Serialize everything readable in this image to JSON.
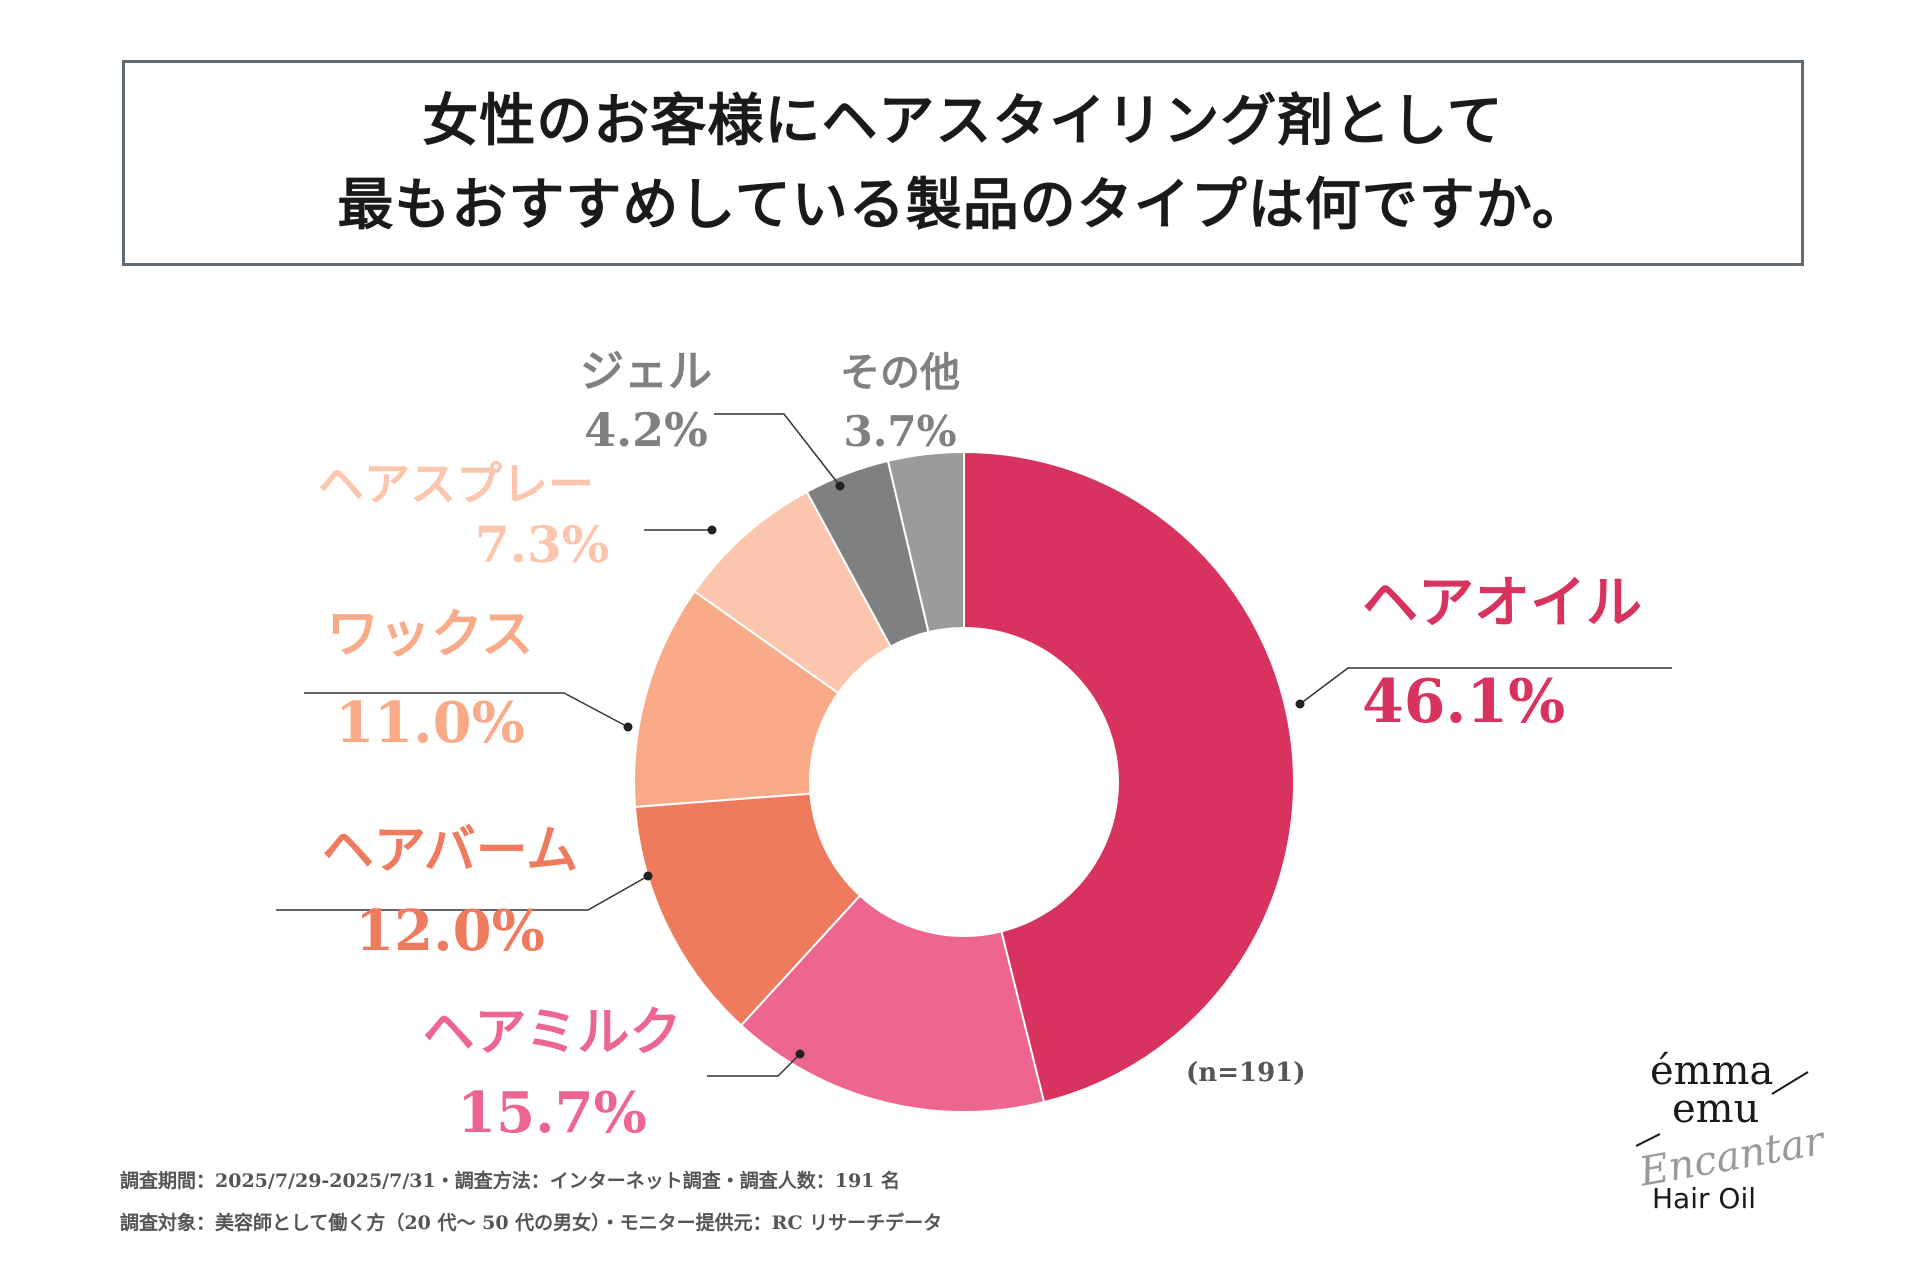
{
  "title": {
    "line1": "女性のお客様にヘアスタイリング剤として",
    "line2": "最もおすすめしている製品のタイプは何ですか。"
  },
  "chart_data": {
    "type": "pie",
    "subtype": "donut",
    "title": "女性のお客様にヘアスタイリング剤として最もおすすめしている製品のタイプは何ですか。",
    "unit": "%",
    "slices": [
      {
        "label": "ヘアオイル",
        "value": 46.1,
        "display": "46.1%",
        "color": "#d8325e"
      },
      {
        "label": "ヘアミルク",
        "value": 15.7,
        "display": "15.7%",
        "color": "#ec6690"
      },
      {
        "label": "ヘアバーム",
        "value": 12.0,
        "display": "12.0%",
        "color": "#ef7b5f"
      },
      {
        "label": "ワックス",
        "value": 11.0,
        "display": "11.0%",
        "color": "#f9ab89"
      },
      {
        "label": "ヘアスプレー",
        "value": 7.3,
        "display": "7.3%",
        "color": "#fcc5ae"
      },
      {
        "label": "ジェル",
        "value": 4.2,
        "display": "4.2%",
        "color": "#808080",
        "label_color": "#808080"
      },
      {
        "label": "その他",
        "value": 3.7,
        "display": "3.7%",
        "color": "#9b9b9b",
        "label_color": "#808080"
      }
    ],
    "sample_size": "(n=191)"
  },
  "notes": {
    "line1": "調査期間：2025/7/29-2025/7/31・調査方法：インターネット調査・調査人数：191 名",
    "line2": "調査対象：美容師として働く方（20 代〜 50 代の男女）・モニター提供元：RC リサーチデータ"
  },
  "logo": {
    "brand_line1": "émma",
    "brand_line2": "emu",
    "script": "Encantar",
    "product": "Hair Oil"
  }
}
